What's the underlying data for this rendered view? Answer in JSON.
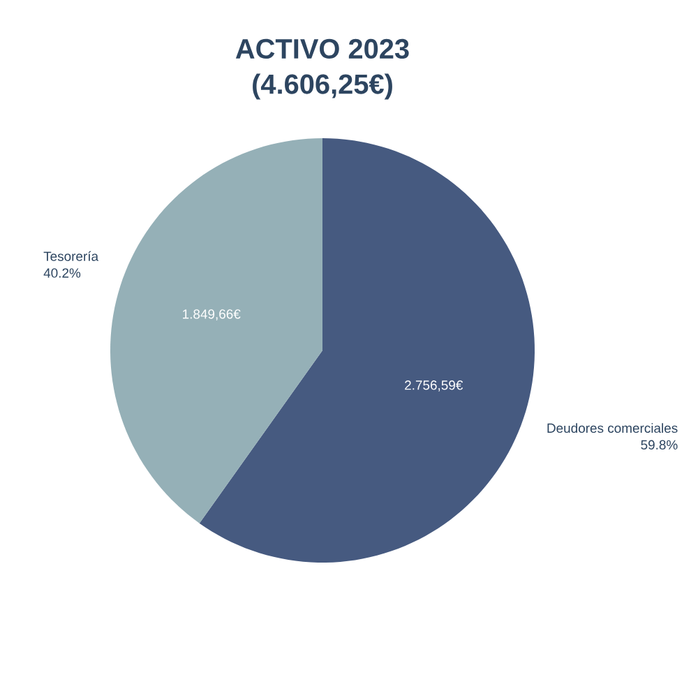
{
  "chart_data": {
    "type": "pie",
    "title": "ACTIVO 2023",
    "subtitle": "(4.606,25€)",
    "categories": [
      "Deudores comerciales",
      "Tesorería"
    ],
    "values": [
      2756.59,
      1849.66
    ],
    "colors": [
      "#465a80",
      "#95b0b7"
    ],
    "value_labels": [
      "2.756,59€",
      "1.849,66€"
    ],
    "annotations": [
      "59.8%",
      "40.2%"
    ]
  }
}
